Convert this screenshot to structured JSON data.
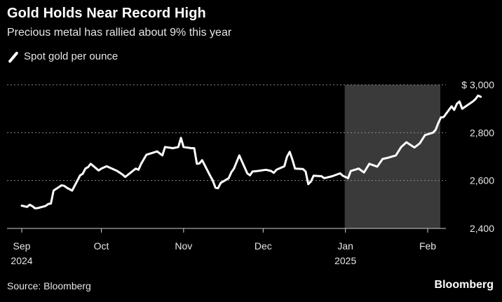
{
  "title": "Gold Holds Near Record High",
  "subtitle": "Precious metal has rallied about 9% this year",
  "legend_label": "Spot gold per ounce",
  "source": "Source: Bloomberg",
  "brand": "Bloomberg",
  "colors": {
    "background": "#000000",
    "line": "#ffffff",
    "shade": "#3a3a3a",
    "grid": "#8a8a8a",
    "text": "#e6e6e6"
  },
  "chart_data": {
    "type": "line",
    "series": [
      {
        "name": "Spot gold per ounce",
        "x": [
          "2024-09-01",
          "2024-09-03",
          "2024-09-04",
          "2024-09-05",
          "2024-09-06",
          "2024-09-07",
          "2024-09-09",
          "2024-09-10",
          "2024-09-11",
          "2024-09-12",
          "2024-09-13",
          "2024-09-16",
          "2024-09-17",
          "2024-09-18",
          "2024-09-20",
          "2024-09-23",
          "2024-09-24",
          "2024-09-25",
          "2024-09-26",
          "2024-09-27",
          "2024-09-30",
          "2024-10-01",
          "2024-10-03",
          "2024-10-07",
          "2024-10-09",
          "2024-10-10",
          "2024-10-14",
          "2024-10-15",
          "2024-10-16",
          "2024-10-18",
          "2024-10-21",
          "2024-10-22",
          "2024-10-24",
          "2024-10-25",
          "2024-10-28",
          "2024-10-30",
          "2024-10-31",
          "2024-11-01",
          "2024-11-04",
          "2024-11-05",
          "2024-11-06",
          "2024-11-07",
          "2024-11-08",
          "2024-11-11",
          "2024-11-12",
          "2024-11-13",
          "2024-11-14",
          "2024-11-15",
          "2024-11-18",
          "2024-11-19",
          "2024-11-20",
          "2024-11-22",
          "2024-11-25",
          "2024-11-26",
          "2024-11-27",
          "2024-11-29",
          "2024-12-02",
          "2024-12-04",
          "2024-12-05",
          "2024-12-06",
          "2024-12-09",
          "2024-12-10",
          "2024-12-11",
          "2024-12-12",
          "2024-12-13",
          "2024-12-16",
          "2024-12-17",
          "2024-12-18",
          "2024-12-19",
          "2024-12-20",
          "2024-12-23",
          "2024-12-24",
          "2024-12-27",
          "2024-12-30",
          "2024-12-31",
          "2025-01-02",
          "2025-01-03",
          "2025-01-06",
          "2025-01-08",
          "2025-01-10",
          "2025-01-13",
          "2025-01-15",
          "2025-01-17",
          "2025-01-20",
          "2025-01-22",
          "2025-01-24",
          "2025-01-27",
          "2025-01-29",
          "2025-01-31",
          "2025-02-03",
          "2025-02-04",
          "2025-02-05",
          "2025-02-06",
          "2025-02-07",
          "2025-02-10",
          "2025-02-11",
          "2025-02-12",
          "2025-02-13",
          "2025-02-14",
          "2025-02-18",
          "2025-02-19",
          "2025-02-20",
          "2025-02-21"
        ],
        "values": [
          2495,
          2490,
          2499,
          2493,
          2484,
          2485,
          2491,
          2494,
          2502,
          2504,
          2558,
          2580,
          2578,
          2570,
          2558,
          2622,
          2628,
          2650,
          2656,
          2670,
          2642,
          2650,
          2660,
          2640,
          2625,
          2615,
          2650,
          2645,
          2670,
          2708,
          2718,
          2722,
          2705,
          2740,
          2735,
          2740,
          2778,
          2740,
          2735,
          2735,
          2670,
          2672,
          2685,
          2620,
          2600,
          2570,
          2568,
          2590,
          2610,
          2635,
          2650,
          2705,
          2630,
          2622,
          2638,
          2640,
          2645,
          2640,
          2632,
          2645,
          2660,
          2700,
          2720,
          2688,
          2650,
          2648,
          2638,
          2585,
          2596,
          2620,
          2618,
          2610,
          2618,
          2630,
          2620,
          2610,
          2640,
          2650,
          2634,
          2670,
          2658,
          2690,
          2695,
          2705,
          2740,
          2760,
          2738,
          2755,
          2790,
          2800,
          2812,
          2840,
          2864,
          2865,
          2910,
          2895,
          2920,
          2930,
          2900,
          2930,
          2940,
          2955,
          2950
        ],
        "unit": "$"
      }
    ],
    "x_ticks": [
      {
        "label": "Sep",
        "sublabel": "2024",
        "date": "2024-09-01"
      },
      {
        "label": "Oct",
        "sublabel": "",
        "date": "2024-10-01"
      },
      {
        "label": "Nov",
        "sublabel": "",
        "date": "2024-11-01"
      },
      {
        "label": "Dec",
        "sublabel": "",
        "date": "2024-12-01"
      },
      {
        "label": "Jan",
        "sublabel": "2025",
        "date": "2025-01-01"
      },
      {
        "label": "Feb",
        "sublabel": "",
        "date": "2025-02-01"
      }
    ],
    "x_range": [
      "2024-09-01",
      "2025-02-28"
    ],
    "y_ticks": [
      {
        "value": 2400,
        "label": "2,400"
      },
      {
        "value": 2600,
        "label": "2,600"
      },
      {
        "value": 2800,
        "label": "2,800"
      },
      {
        "value": 3000,
        "label": "$ 3,000"
      }
    ],
    "ylim": [
      2400,
      3000
    ],
    "shaded_region": {
      "start": "2025-01-01",
      "end": "2025-02-28"
    },
    "grid": "horizontal dashed",
    "legend_position": "top-left"
  }
}
